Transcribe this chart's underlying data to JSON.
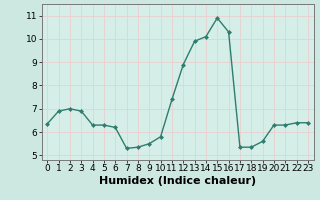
{
  "x": [
    0,
    1,
    2,
    3,
    4,
    5,
    6,
    7,
    8,
    9,
    10,
    11,
    12,
    13,
    14,
    15,
    16,
    17,
    18,
    19,
    20,
    21,
    22,
    23
  ],
  "y": [
    6.35,
    6.9,
    7.0,
    6.9,
    6.3,
    6.3,
    6.2,
    5.3,
    5.35,
    5.5,
    5.8,
    7.4,
    8.9,
    9.9,
    10.1,
    10.9,
    10.3,
    5.35,
    5.35,
    5.6,
    6.3,
    6.3,
    6.4,
    6.4
  ],
  "line_color": "#2e7d6e",
  "marker": "D",
  "markersize": 2.0,
  "linewidth": 1.0,
  "xlabel": "Humidex (Indice chaleur)",
  "xlim": [
    -0.5,
    23.5
  ],
  "ylim": [
    4.8,
    11.5
  ],
  "yticks": [
    5,
    6,
    7,
    8,
    9,
    10,
    11
  ],
  "xticks": [
    0,
    1,
    2,
    3,
    4,
    5,
    6,
    7,
    8,
    9,
    10,
    11,
    12,
    13,
    14,
    15,
    16,
    17,
    18,
    19,
    20,
    21,
    22,
    23
  ],
  "bg_color": "#cce8e0",
  "grid_color": "#e8d0d0",
  "axes_bg": "#d6eee8",
  "tick_fontsize": 6.5,
  "xlabel_fontsize": 8.0
}
